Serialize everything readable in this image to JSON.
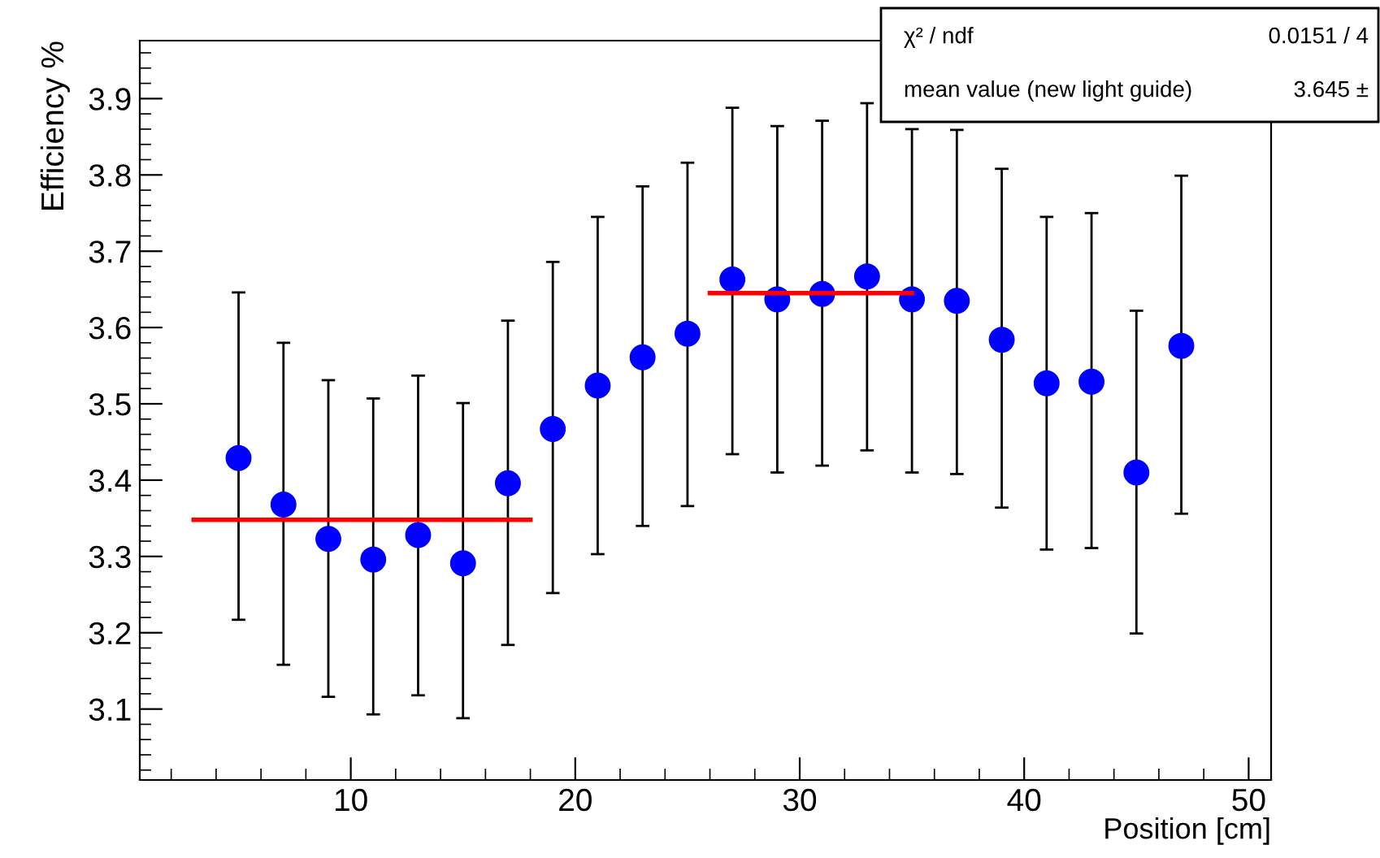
{
  "chart_data": {
    "type": "scatter",
    "xlabel": "Position [cm]",
    "ylabel": "Efficiency %",
    "xlim": [
      0.6,
      51
    ],
    "ylim": [
      3.007,
      3.976
    ],
    "xticks": [
      10,
      20,
      30,
      40,
      50
    ],
    "yticks": [
      3.1,
      3.2,
      3.3,
      3.4,
      3.5,
      3.6,
      3.7,
      3.8,
      3.9
    ],
    "grid": false,
    "series": [
      {
        "marker": "circle",
        "color": "#0000ff",
        "x": [
          5,
          7,
          9,
          11,
          13,
          15,
          17,
          19,
          21,
          23,
          25,
          27,
          29,
          31,
          33,
          35,
          37,
          39,
          41,
          43,
          45,
          47
        ],
        "values": [
          3.429,
          3.368,
          3.323,
          3.296,
          3.328,
          3.291,
          3.396,
          3.467,
          3.524,
          3.561,
          3.592,
          3.663,
          3.637,
          3.644,
          3.667,
          3.637,
          3.635,
          3.584,
          3.527,
          3.529,
          3.41,
          3.576
        ],
        "errors": [
          [
            3.217,
            3.646
          ],
          [
            3.158,
            3.58
          ],
          [
            3.116,
            3.531
          ],
          [
            3.093,
            3.507
          ],
          [
            3.118,
            3.537
          ],
          [
            3.088,
            3.501
          ],
          [
            3.184,
            3.609
          ],
          [
            3.252,
            3.686
          ],
          [
            3.303,
            3.745
          ],
          [
            3.34,
            3.785
          ],
          [
            3.366,
            3.816
          ],
          [
            3.434,
            3.888
          ],
          [
            3.41,
            3.864
          ],
          [
            3.419,
            3.871
          ],
          [
            3.439,
            3.894
          ],
          [
            3.41,
            3.86
          ],
          [
            3.408,
            3.859
          ],
          [
            3.364,
            3.808
          ],
          [
            3.309,
            3.745
          ],
          [
            3.311,
            3.75
          ],
          [
            3.199,
            3.622
          ],
          [
            3.356,
            3.799
          ]
        ]
      },
      {
        "type": "line",
        "marker": "none",
        "color": "#ff0000",
        "x": [
          3,
          18
        ],
        "values": [
          3.348,
          3.348
        ]
      },
      {
        "type": "line",
        "marker": "none",
        "color": "#ff0000",
        "x": [
          26,
          35
        ],
        "values": [
          3.645,
          3.645
        ]
      }
    ],
    "annotations": [
      "χ² / ndf",
      "0.0151 / 4",
      "mean value (new light guide)",
      "3.645 ±"
    ]
  }
}
